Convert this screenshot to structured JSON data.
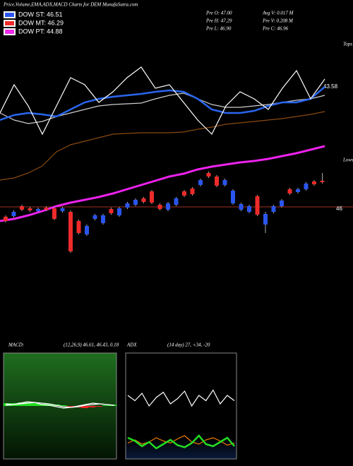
{
  "chart_data": [
    {
      "type": "candlestick",
      "title": "Price,Volume,EMA,ADX,MACD Charts for DEM MunafaSutra.com",
      "legend": [
        {
          "label": "DOW ST: 46.51",
          "color": "#2a55ee"
        },
        {
          "label": "DOW MT: 46.29",
          "color": "#ee2a2a"
        },
        {
          "label": "DOW PT: 44.88",
          "color": "#ee2aee"
        }
      ],
      "info": [
        "Pre  O: 47.00",
        "Avg V: 0.017 M",
        "Pre  H: 47.29",
        "Pre  V: 0.208 M",
        "Pre  L: 46.90",
        "Pre  C: 46.96"
      ],
      "markers": [
        "Tops",
        "Lows"
      ],
      "price_labels": [
        "43.58",
        "46"
      ],
      "up_color": "#2a55ee",
      "down_color": "#ee2a2a",
      "ylim": [
        -40,
        280
      ],
      "open": [
        33,
        34,
        48,
        45,
        41,
        46,
        45,
        41,
        40,
        27,
        8,
        30,
        24,
        44,
        35,
        46,
        50,
        59,
        69,
        50,
        43,
        50,
        69,
        73,
        78,
        95,
        90,
        78,
        52,
        43,
        40,
        62,
        22,
        40,
        48,
        72,
        68,
        72,
        83,
        84
      ],
      "close": [
        27,
        40,
        43,
        42,
        44,
        43,
        30,
        45,
        -16,
        10,
        20,
        35,
        35,
        38,
        45,
        52,
        57,
        54,
        53,
        44,
        52,
        59,
        63,
        65,
        85,
        90,
        77,
        85,
        70,
        51,
        48,
        36,
        37,
        48,
        56,
        66,
        72,
        80,
        79,
        82
      ],
      "high": [
        35,
        42,
        50,
        47,
        46,
        48,
        47,
        47,
        42,
        29,
        22,
        37,
        37,
        46,
        47,
        54,
        59,
        61,
        71,
        52,
        54,
        61,
        71,
        75,
        87,
        97,
        92,
        87,
        72,
        53,
        50,
        64,
        40,
        50,
        58,
        74,
        74,
        82,
        85,
        95
      ],
      "low": [
        25,
        32,
        41,
        40,
        40,
        41,
        28,
        39,
        -18,
        8,
        6,
        28,
        22,
        36,
        33,
        44,
        48,
        52,
        51,
        42,
        41,
        48,
        61,
        63,
        76,
        88,
        75,
        76,
        50,
        41,
        38,
        34,
        10,
        38,
        46,
        64,
        66,
        70,
        77,
        80
      ],
      "series": [
        {
          "color": "#8a4a10",
          "values": [
            85,
            88,
            95,
            105,
            125,
            135,
            140,
            145,
            150,
            151,
            152,
            152,
            152,
            153,
            157,
            160,
            164,
            166,
            168,
            170,
            172,
            175,
            178,
            182
          ]
        },
        {
          "color": "#cccccc",
          "values": [
            180,
            170,
            165,
            168,
            175,
            180,
            185,
            190,
            192,
            193,
            194,
            200,
            205,
            208,
            200,
            192,
            188,
            188,
            190,
            192,
            195,
            198,
            200,
            205
          ]
        },
        {
          "color": "#2a66ee",
          "values": [
            170,
            177,
            180,
            178,
            175,
            185,
            195,
            200,
            203,
            205,
            207,
            210,
            212,
            210,
            200,
            185,
            180,
            180,
            183,
            190,
            195,
            195,
            200,
            217
          ]
        },
        {
          "color": "#ffffff",
          "values": [
            180,
            220,
            190,
            150,
            190,
            230,
            220,
            195,
            210,
            230,
            245,
            215,
            220,
            195,
            170,
            150,
            190,
            210,
            200,
            185,
            215,
            240,
            200,
            228
          ]
        },
        {
          "color": "#ee22ee",
          "values": [
            27,
            30,
            35,
            41,
            48,
            53,
            57,
            61,
            66,
            72,
            78,
            84,
            90,
            94,
            100,
            104,
            107,
            110,
            112,
            115,
            119,
            123,
            128,
            133
          ]
        }
      ]
    },
    {
      "type": "line",
      "title": "MACD:",
      "subtitle": "(12,26,9) 46.61, 46.43, 0.18",
      "ylim": [
        -75,
        75
      ],
      "histogram": [
        4,
        4,
        5,
        5,
        4,
        3,
        3,
        2,
        1,
        -1,
        -2,
        -3,
        -2,
        -1,
        1,
        2
      ],
      "series": [
        {
          "color": "#ffffff",
          "values": [
            3,
            2,
            4,
            6,
            5,
            2,
            1,
            -1,
            -3,
            -2,
            0,
            2,
            4,
            3,
            2,
            1
          ]
        },
        {
          "color": "#ffffff",
          "values": [
            1,
            2,
            3,
            4,
            5,
            4,
            3,
            1,
            -1,
            -2,
            -1,
            1,
            2,
            3,
            2,
            1
          ]
        }
      ]
    },
    {
      "type": "line",
      "title": "ADX",
      "subtitle": "(14 day) 27, +34, -20",
      "ylim": [
        0,
        100
      ],
      "series": [
        {
          "color": "#ffffff",
          "values": [
            60,
            55,
            62,
            50,
            58,
            63,
            52,
            57,
            64,
            50,
            60,
            55,
            65,
            52,
            60,
            55
          ]
        },
        {
          "color": "#f07d00",
          "values": [
            15,
            18,
            14,
            16,
            20,
            17,
            15,
            19,
            22,
            16,
            14,
            18,
            20,
            17,
            13,
            15
          ]
        },
        {
          "color": "#22dd22",
          "values": [
            20,
            17,
            12,
            16,
            10,
            14,
            18,
            13,
            11,
            15,
            22,
            14,
            12,
            16,
            20,
            12
          ]
        }
      ]
    }
  ]
}
